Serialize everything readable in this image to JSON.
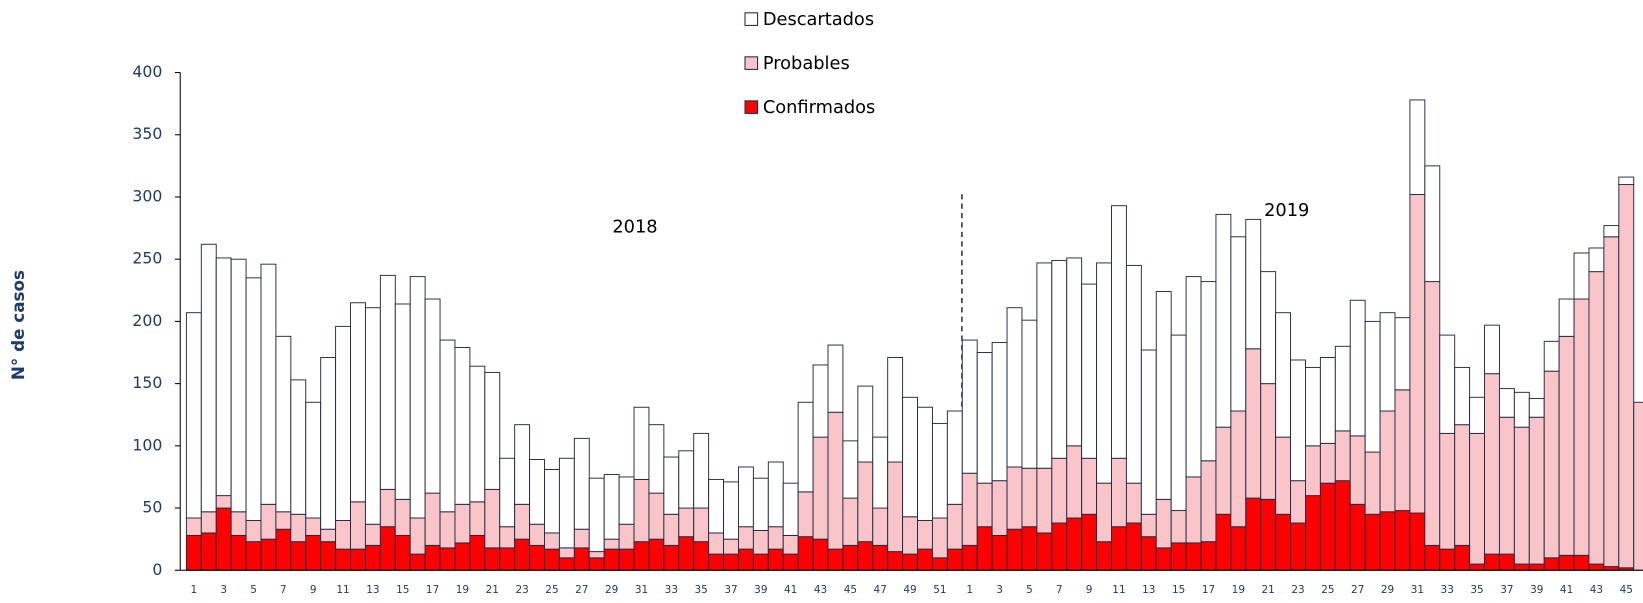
{
  "chart_data": {
    "type": "stacked_bar",
    "y_label": "N° de casos",
    "annotations": [
      {
        "text": "2018"
      },
      {
        "text": "2019"
      }
    ],
    "categories": [
      "1",
      null,
      "3",
      null,
      "5",
      null,
      "7",
      null,
      "9",
      null,
      "11",
      null,
      "13",
      null,
      "15",
      null,
      "17",
      null,
      "19",
      null,
      "21",
      null,
      "23",
      null,
      "25",
      null,
      "27",
      null,
      "29",
      null,
      "31",
      null,
      "33",
      null,
      "35",
      null,
      "37",
      null,
      "39",
      null,
      "41",
      null,
      "43",
      null,
      "45",
      null,
      "47",
      null,
      "49",
      null,
      "51",
      null,
      "1",
      null,
      "3",
      null,
      "5",
      null,
      "7",
      null,
      "9",
      null,
      "11",
      null,
      "13",
      null,
      "15",
      null,
      "17",
      null,
      "19",
      null,
      "21",
      null,
      "23",
      null,
      "25",
      null,
      "27",
      null,
      "29",
      null,
      "31",
      null,
      "33",
      null,
      "35",
      null,
      "37",
      null,
      "39",
      null,
      "41",
      null,
      "43",
      null,
      "45",
      null
    ],
    "series": [
      {
        "name": "Confirmados",
        "color": "#ff0000",
        "values": [
          28,
          30,
          50,
          28,
          23,
          25,
          33,
          23,
          28,
          23,
          17,
          17,
          20,
          35,
          28,
          13,
          20,
          18,
          22,
          28,
          18,
          18,
          25,
          20,
          17,
          10,
          18,
          10,
          17,
          17,
          23,
          25,
          20,
          27,
          23,
          13,
          13,
          17,
          13,
          17,
          13,
          27,
          25,
          17,
          20,
          23,
          20,
          15,
          13,
          17,
          10,
          17,
          20,
          35,
          28,
          33,
          35,
          30,
          38,
          42,
          45,
          23,
          35,
          38,
          27,
          18,
          22,
          22,
          23,
          45,
          35,
          58,
          57,
          45,
          38,
          60,
          70,
          72,
          53,
          45,
          47,
          48,
          46,
          20,
          17,
          20,
          5,
          13,
          13,
          5,
          5,
          10,
          12,
          12,
          5,
          3,
          2,
          0
        ]
      },
      {
        "name": "Probables",
        "color": "#f9c5c9",
        "values": [
          14,
          17,
          10,
          19,
          17,
          28,
          14,
          22,
          14,
          10,
          23,
          38,
          17,
          30,
          29,
          29,
          42,
          29,
          31,
          27,
          47,
          17,
          28,
          17,
          13,
          8,
          15,
          5,
          8,
          20,
          50,
          37,
          25,
          23,
          27,
          17,
          12,
          18,
          19,
          18,
          15,
          36,
          82,
          110,
          38,
          64,
          30,
          72,
          30,
          23,
          32,
          36,
          58,
          35,
          44,
          50,
          47,
          52,
          52,
          58,
          45,
          47,
          55,
          32,
          18,
          39,
          26,
          53,
          65,
          70,
          93,
          120,
          93,
          62,
          34,
          40,
          32,
          40,
          55,
          50,
          81,
          97,
          256,
          212,
          93,
          97,
          105,
          145,
          110,
          110,
          118,
          150,
          176,
          206,
          235,
          265,
          308,
          135
        ]
      },
      {
        "name": "Descartados",
        "color": "#ffffff",
        "values": [
          165,
          215,
          191,
          203,
          195,
          193,
          141,
          108,
          93,
          138,
          156,
          160,
          174,
          172,
          157,
          194,
          156,
          138,
          126,
          109,
          94,
          55,
          64,
          52,
          51,
          72,
          73,
          59,
          52,
          38,
          58,
          55,
          46,
          46,
          60,
          43,
          46,
          48,
          42,
          52,
          42,
          72,
          58,
          54,
          46,
          61,
          57,
          84,
          96,
          91,
          76,
          75,
          107,
          105,
          111,
          128,
          119,
          165,
          159,
          151,
          140,
          177,
          203,
          175,
          132,
          167,
          141,
          161,
          144,
          171,
          140,
          104,
          90,
          100,
          97,
          63,
          69,
          68,
          109,
          105,
          79,
          58,
          76,
          93,
          79,
          46,
          29,
          39,
          23,
          28,
          15,
          24,
          30,
          37,
          19,
          9,
          6,
          0
        ]
      }
    ],
    "ylim": [
      0,
      400
    ],
    "yticks": [
      0,
      50,
      100,
      150,
      200,
      250,
      300,
      350,
      400
    ],
    "grid": false
  }
}
